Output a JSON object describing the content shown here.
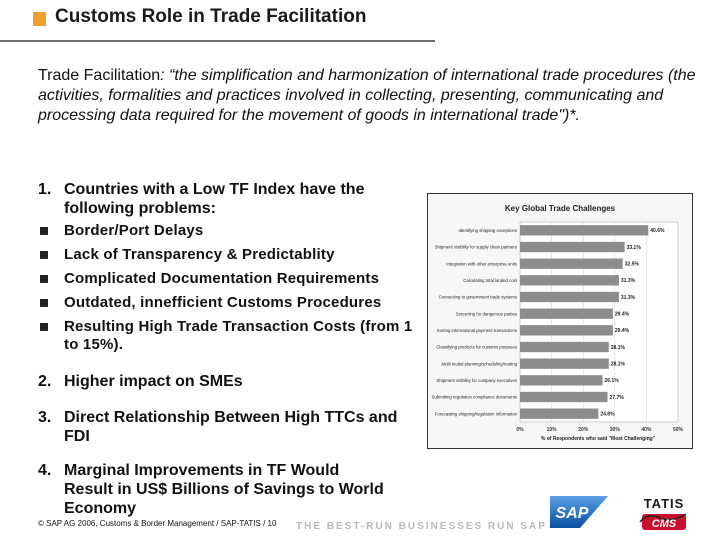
{
  "header": {
    "title": "Customs Role in Trade Facilitation"
  },
  "intro": {
    "lead": "Trade Facilitation",
    "body": ": “the simplification and harmonization of international trade procedures (the activities, formalities and practices involved in collecting, presenting, communicating and processing data required for the movement of goods in international trade\")*."
  },
  "points": [
    {
      "n": "1.",
      "text": "Countries with a Low TF Index have the following problems:"
    },
    {
      "n": "2.",
      "text": "Higher impact on SMEs"
    },
    {
      "n": "3.",
      "text": "Direct Relationship Between High TTCs and FDI"
    },
    {
      "n": "4.",
      "text": "Marginal Improvements in TF Would Result in US$ Billions of Savings to World Economy"
    }
  ],
  "problems": [
    "Border/Port Delays",
    "Lack of Transparency & Predictablity",
    "Complicated Documentation Requirements",
    "Outdated, innefficient Customs Procedures",
    "Resulting High Trade Transaction Costs (from 1 to 15%)."
  ],
  "chart_data": {
    "type": "bar",
    "orientation": "horizontal",
    "title": "Key Global Trade Challenges",
    "categories": [
      "Identifying shipping exceptions",
      "Shipment visibility for supply chain partners",
      "Integration with other enterprise units",
      "Calculating total landed cost",
      "Connecting to government trade systems",
      "Screening for dangerous parties",
      "Sorting international payment transactions",
      "Classifying products for customs purposes",
      "Multi modal planning/scheduling/routing",
      "Shipment visibility for company executives",
      "Submitting regulation compliance documents",
      "Forecasting shipping/regulation information"
    ],
    "values": [
      40.6,
      33.1,
      32.5,
      31.3,
      31.3,
      29.4,
      29.4,
      28.1,
      28.1,
      26.1,
      27.7,
      24.8
    ],
    "value_labels": [
      "40.6%",
      "33.1%",
      "32.5%",
      "31.3%",
      "31.3%",
      "29.4%",
      "29.4%",
      "28.1%",
      "28.1%",
      "26.1%",
      "27.7%",
      "24.8%"
    ],
    "xticks": [
      "0%",
      "10%",
      "20%",
      "30%",
      "40%",
      "50%"
    ],
    "xlim": [
      0,
      50
    ],
    "xlabel": "% of Respondents who said \"Most Challenging\"",
    "bar_color": "#8c8c8c"
  },
  "footer": {
    "copyright": "© SAP AG 2006, Customs & Border Management / SAP-TATIS / 10",
    "tagline": "THE BEST-RUN BUSINESSES RUN SAP",
    "sap_logo": "SAP",
    "partner_logo_top": "TATIS",
    "partner_logo_bottom": "CMS"
  },
  "colors": {
    "accent": "#f0a030",
    "sap_blue": "#1560b8",
    "tatis_red": "#c8102e"
  }
}
